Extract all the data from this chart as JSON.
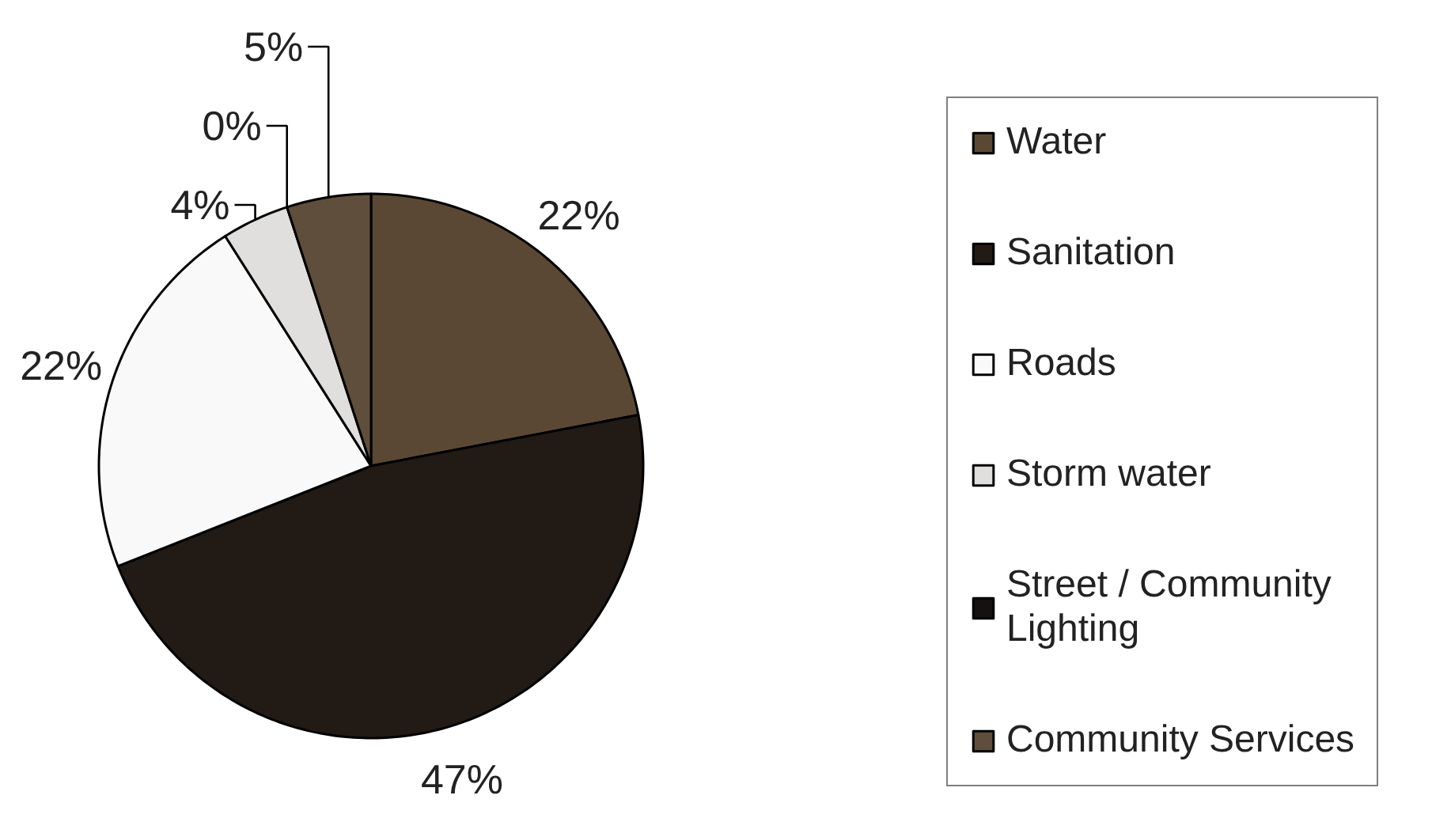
{
  "chart_data": {
    "type": "pie",
    "categories": [
      "Water",
      "Sanitation",
      "Roads",
      "Storm water",
      "Street / Community Lighting",
      "Community Services"
    ],
    "values": [
      22,
      47,
      22,
      4,
      0,
      5
    ],
    "colors": [
      "#5a4835",
      "#221a15",
      "#f9f9f9",
      "#e0dfdd",
      "#15110e",
      "#5e4e3b"
    ],
    "value_labels": [
      "22%",
      "47%",
      "22%",
      "4%",
      "0%",
      "5%"
    ],
    "legend": "right"
  }
}
